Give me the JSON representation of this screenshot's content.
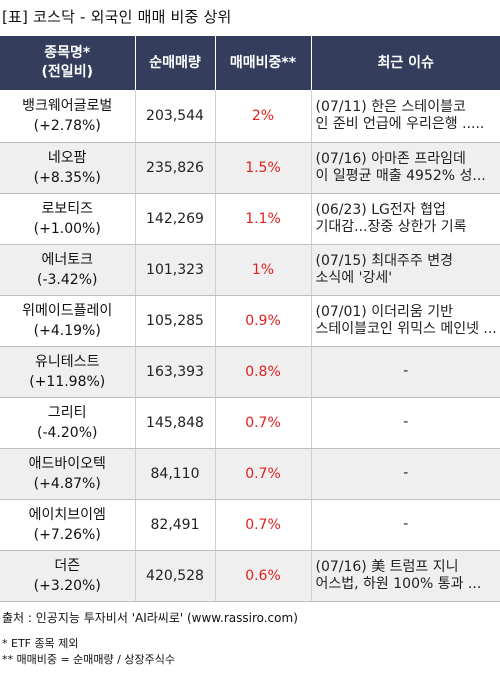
{
  "title": "[표] 코스닥 - 외국인 매매 비중 상위",
  "headers": {
    "name_line1": "종목명*",
    "name_line2": "(전일비)",
    "volume": "순매매량",
    "ratio": "매매비중**",
    "issue": "최근 이슈"
  },
  "rows": [
    {
      "name": "뱅크웨어글로벌",
      "change": "(+2.78%)",
      "volume": "203,544",
      "ratio": "2%",
      "issue1": "(07/11) 한은 스테이블코",
      "issue2": "인 준비 언급에 우리은행 ....."
    },
    {
      "name": "네오팜",
      "change": "(+8.35%)",
      "volume": "235,826",
      "ratio": "1.5%",
      "issue1": "(07/16) 아마존 프라임데",
      "issue2": "이 일평균 매출 4952% 성..."
    },
    {
      "name": "로보티즈",
      "change": "(+1.00%)",
      "volume": "142,269",
      "ratio": "1.1%",
      "issue1": "(06/23) LG전자 협업",
      "issue2": "기대감...장중 상한가 기록"
    },
    {
      "name": "에너토크",
      "change": "(-3.42%)",
      "volume": "101,323",
      "ratio": "1%",
      "issue1": "(07/15) 최대주주 변경",
      "issue2": "소식에 '강세'"
    },
    {
      "name": "위메이드플레이",
      "change": "(+4.19%)",
      "volume": "105,285",
      "ratio": "0.9%",
      "issue1": "(07/01) 이더리움 기반",
      "issue2": "스테이블코인 위믹스 메인넷 ..."
    },
    {
      "name": "유니테스트",
      "change": "(+11.98%)",
      "volume": "163,393",
      "ratio": "0.8%",
      "issue1": "-",
      "issue2": ""
    },
    {
      "name": "그리티",
      "change": "(-4.20%)",
      "volume": "145,848",
      "ratio": "0.7%",
      "issue1": "-",
      "issue2": ""
    },
    {
      "name": "애드바이오텍",
      "change": "(+4.87%)",
      "volume": "84,110",
      "ratio": "0.7%",
      "issue1": "-",
      "issue2": ""
    },
    {
      "name": "에이치브이엠",
      "change": "(+7.26%)",
      "volume": "82,491",
      "ratio": "0.7%",
      "issue1": "-",
      "issue2": ""
    },
    {
      "name": "더즌",
      "change": "(+3.20%)",
      "volume": "420,528",
      "ratio": "0.6%",
      "issue1": "(07/16) 美 트럼프 지니",
      "issue2": "어스법, 하원 100% 통과 ..."
    }
  ],
  "source": "출처 : 인공지능 투자비서 'AI라씨로' (www.rassiro.com)",
  "note1": "* ETF 종목 제외",
  "note2": "** 매매비중 = 순매매량 / 상장주식수",
  "colors": {
    "header_bg": "#343e5c",
    "ratio_text": "#e02020",
    "stripe": "#efefef"
  }
}
